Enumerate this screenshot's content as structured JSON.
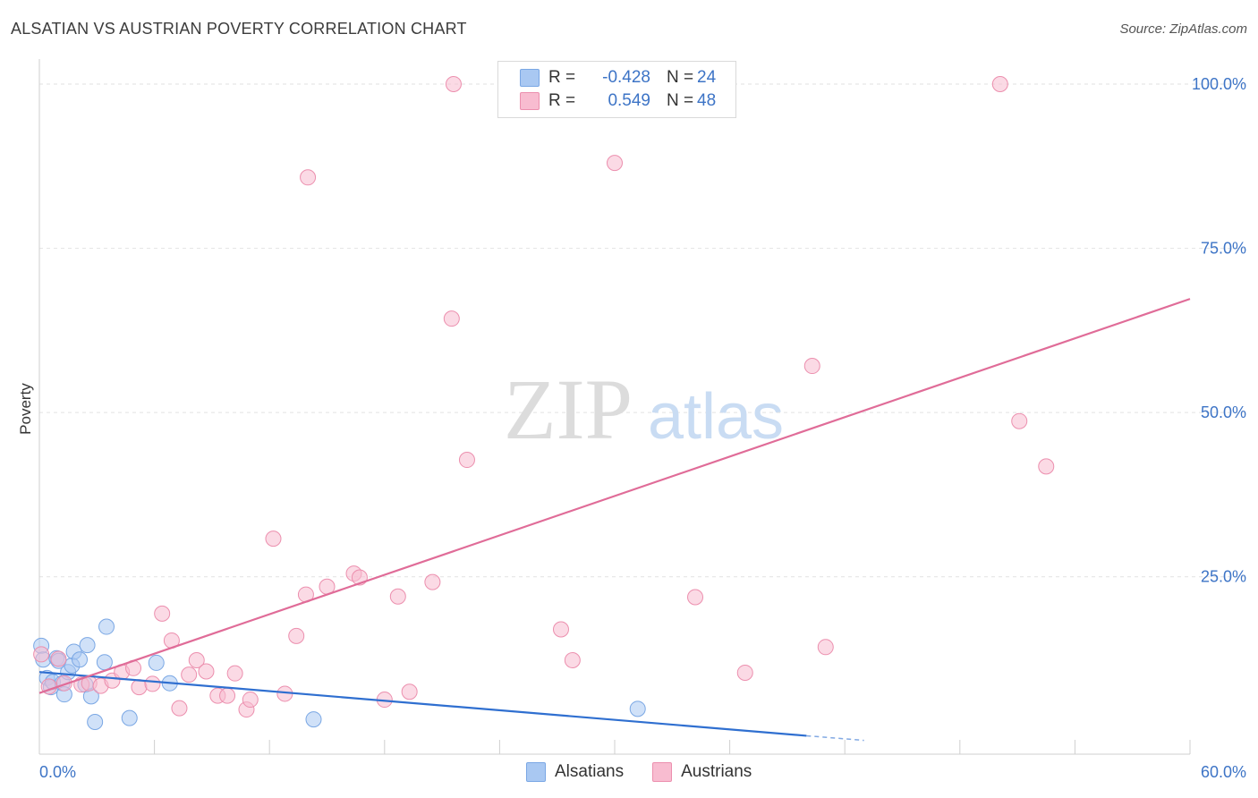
{
  "header": {
    "title": "ALSATIAN VS AUSTRIAN POVERTY CORRELATION CHART",
    "source": "Source: ZipAtlas.com"
  },
  "watermark": {
    "zip": "ZIP",
    "atlas": "atlas"
  },
  "legend_top": {
    "rows": [
      {
        "r_label": "R =",
        "r_value": "-0.428",
        "n_label": "N =",
        "n_value": "24",
        "color": "#a9c8f2",
        "border": "#7aa7e4"
      },
      {
        "r_label": "R =",
        "r_value": "0.549",
        "n_label": "N =",
        "n_value": "48",
        "color": "#f8bcd0",
        "border": "#ec8fae"
      }
    ]
  },
  "legend_bottom": {
    "items": [
      {
        "label": "Alsatians",
        "color": "#a9c8f2",
        "border": "#7aa7e4"
      },
      {
        "label": "Austrians",
        "color": "#f8bcd0",
        "border": "#ec8fae"
      }
    ]
  },
  "chart_data": {
    "type": "scatter",
    "title": "ALSATIAN VS AUSTRIAN POVERTY CORRELATION CHART",
    "xlabel": "",
    "ylabel": "Poverty",
    "xlim": [
      0,
      60
    ],
    "ylim": [
      -2,
      103
    ],
    "x_tick_labels": [
      "0.0%",
      "60.0%"
    ],
    "y_ticks": [
      25,
      50,
      75,
      100
    ],
    "y_tick_labels": [
      "25.0%",
      "50.0%",
      "75.0%",
      "100.0%"
    ],
    "grid": true,
    "series": [
      {
        "name": "Alsatians",
        "color": "#7aa7e4",
        "fill": "#a9c8f2",
        "line_color": "#2f6fd0",
        "trend": {
          "x": [
            0,
            40
          ],
          "y": [
            10.5,
            0.8
          ]
        },
        "trend_dashed": {
          "x": [
            40,
            43
          ],
          "y": [
            0.8,
            0.1
          ]
        },
        "points": [
          [
            0.1,
            14.5
          ],
          [
            0.2,
            12.4
          ],
          [
            0.4,
            9.6
          ],
          [
            0.6,
            8.2
          ],
          [
            0.7,
            9.0
          ],
          [
            0.9,
            12.6
          ],
          [
            1.0,
            12.2
          ],
          [
            1.2,
            8.8
          ],
          [
            1.3,
            7.1
          ],
          [
            1.5,
            10.5
          ],
          [
            1.7,
            11.5
          ],
          [
            1.8,
            13.6
          ],
          [
            2.1,
            12.4
          ],
          [
            2.4,
            8.6
          ],
          [
            2.5,
            14.6
          ],
          [
            2.7,
            6.8
          ],
          [
            2.9,
            2.9
          ],
          [
            3.4,
            12.0
          ],
          [
            3.5,
            17.4
          ],
          [
            4.7,
            3.5
          ],
          [
            6.1,
            11.9
          ],
          [
            6.8,
            8.8
          ],
          [
            14.3,
            3.3
          ],
          [
            31.2,
            4.9
          ]
        ]
      },
      {
        "name": "Austrians",
        "color": "#ec8fae",
        "fill": "#f8bcd0",
        "line_color": "#e06c98",
        "trend": {
          "x": [
            0,
            60
          ],
          "y": [
            7.3,
            67.3
          ]
        },
        "points": [
          [
            0.1,
            13.2
          ],
          [
            0.5,
            8.3
          ],
          [
            1.3,
            8.8
          ],
          [
            2.2,
            8.6
          ],
          [
            2.6,
            8.8
          ],
          [
            3.2,
            8.4
          ],
          [
            3.8,
            9.2
          ],
          [
            4.3,
            10.5
          ],
          [
            4.9,
            11.1
          ],
          [
            5.2,
            8.2
          ],
          [
            5.9,
            8.7
          ],
          [
            6.4,
            19.4
          ],
          [
            6.9,
            15.3
          ],
          [
            7.3,
            5.0
          ],
          [
            7.8,
            10.1
          ],
          [
            8.2,
            12.3
          ],
          [
            8.7,
            10.6
          ],
          [
            9.3,
            6.9
          ],
          [
            9.8,
            6.9
          ],
          [
            10.2,
            10.3
          ],
          [
            10.8,
            4.8
          ],
          [
            11.0,
            6.3
          ],
          [
            12.2,
            30.8
          ],
          [
            12.8,
            7.2
          ],
          [
            13.4,
            16.0
          ],
          [
            13.9,
            22.3
          ],
          [
            14.0,
            85.8
          ],
          [
            15.0,
            23.5
          ],
          [
            16.4,
            25.5
          ],
          [
            16.7,
            24.9
          ],
          [
            18.0,
            6.3
          ],
          [
            18.7,
            22.0
          ],
          [
            19.3,
            7.5
          ],
          [
            20.5,
            24.2
          ],
          [
            21.5,
            64.3
          ],
          [
            21.6,
            100.0
          ],
          [
            22.3,
            42.8
          ],
          [
            27.2,
            17.0
          ],
          [
            27.8,
            12.3
          ],
          [
            30.0,
            88.0
          ],
          [
            34.2,
            21.9
          ],
          [
            36.8,
            10.4
          ],
          [
            40.3,
            57.1
          ],
          [
            41.0,
            14.3
          ],
          [
            50.1,
            100.0
          ],
          [
            51.1,
            48.7
          ],
          [
            52.5,
            41.8
          ],
          [
            1.0,
            12.5
          ]
        ]
      }
    ]
  }
}
